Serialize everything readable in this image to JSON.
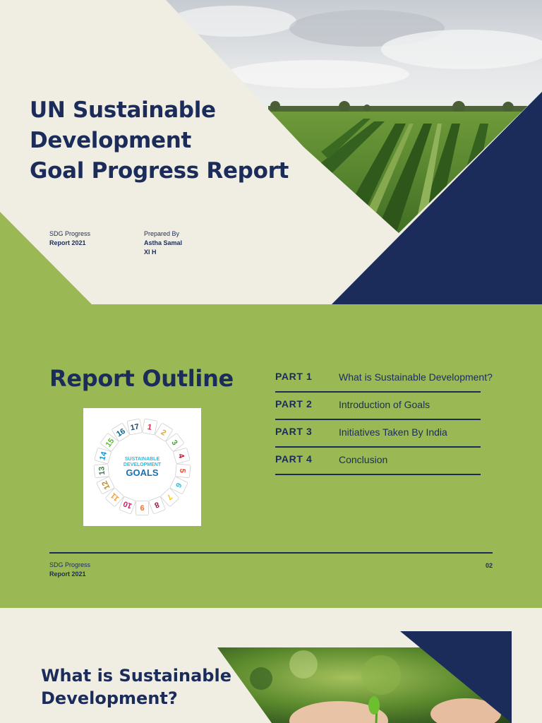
{
  "cover": {
    "title_lines": [
      "UN Sustainable",
      "Development",
      "Goal Progress Report"
    ],
    "meta_left": {
      "line1": "SDG Progress",
      "line2": "Report 2021"
    },
    "meta_right": {
      "label": "Prepared By",
      "name": "Astha Samal",
      "class": "XI H"
    }
  },
  "outline": {
    "heading": "Report Outline",
    "parts": [
      {
        "label": "PART 1",
        "title": "What is Sustainable Development?"
      },
      {
        "label": "PART 2",
        "title": "Introduction of Goals"
      },
      {
        "label": "PART 3",
        "title": "Initiatives Taken By India"
      },
      {
        "label": "PART 4",
        "title": "Conclusion"
      }
    ],
    "footer": {
      "line1": "SDG Progress",
      "line2": "Report 2021",
      "page": "02"
    },
    "sdg_wheel": {
      "center_line1": "SUSTAINABLE",
      "center_line2": "DEVELOPMENT",
      "center_line3": "GOALS",
      "numbers": [
        "1",
        "2",
        "3",
        "4",
        "5",
        "6",
        "7",
        "8",
        "9",
        "10",
        "11",
        "12",
        "13",
        "14",
        "15",
        "16",
        "17"
      ],
      "colors": [
        "#e5243b",
        "#dda63a",
        "#4c9f38",
        "#c5192d",
        "#ff3a21",
        "#26bde2",
        "#fcc30b",
        "#a21942",
        "#fd6925",
        "#dd1367",
        "#fd9d24",
        "#bf8b2e",
        "#3f7e44",
        "#0a97d9",
        "#56c02b",
        "#00689d",
        "#19486a"
      ]
    }
  },
  "section1": {
    "heading_lines": [
      "What is Sustainable",
      "Development?"
    ]
  },
  "colors": {
    "navy": "#1b2c5b",
    "green": "#9ab955",
    "cream": "#f0eee3"
  }
}
